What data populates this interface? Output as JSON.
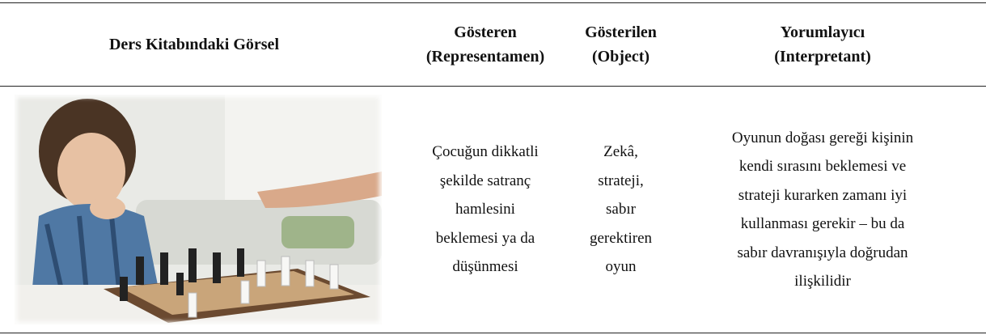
{
  "table": {
    "headers": [
      [
        "Ders Kitabındaki Görsel"
      ],
      [
        "Gösteren",
        "(Representamen)"
      ],
      [
        "Gösterilen",
        "(Object)"
      ],
      [
        "Yorumlayıcı",
        "(Interpretant)"
      ]
    ],
    "rows": [
      [
        [],
        [
          "Çocuğun dikkatli",
          "şekilde satranç",
          "hamlesini",
          "beklemesi ya da",
          "düşünmesi"
        ],
        [
          "Zekâ,",
          "strateji,",
          "sabır",
          "gerektiren",
          "oyun"
        ],
        [
          "Oyunun doğası gereği kişinin",
          "kendi sırasını beklemesi ve",
          "strateji kurarken zamanı iyi",
          "kullanması gerekir – bu da",
          "sabır davranışıyla doğrudan",
          "ilişkilidir"
        ]
      ]
    ]
  }
}
